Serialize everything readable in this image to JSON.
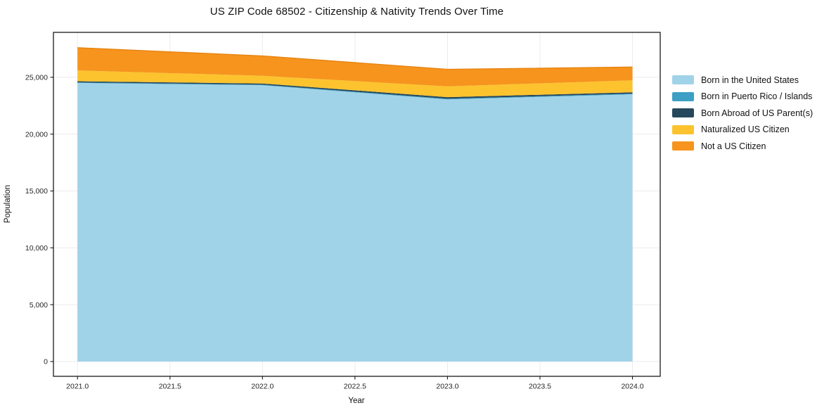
{
  "title": "US ZIP Code 68502 - Citizenship & Nativity Trends Over Time",
  "chart_data": {
    "type": "area",
    "stacked": true,
    "title": "US ZIP Code 68502 - Citizenship & Nativity Trends Over Time",
    "xlabel": "Year",
    "ylabel": "Population",
    "x": [
      2021,
      2022,
      2023,
      2024
    ],
    "series": [
      {
        "name": "Born in the United States",
        "color": "#a1d3e8",
        "values": [
          24500,
          24300,
          23050,
          23500
        ]
      },
      {
        "name": "Born in Puerto Rico / Islands",
        "color": "#3d9fc4",
        "values": [
          50,
          50,
          60,
          60
        ]
      },
      {
        "name": "Born Abroad of US Parent(s)",
        "color": "#26485c",
        "values": [
          100,
          100,
          140,
          120
        ]
      },
      {
        "name": "Naturalized US Citizen",
        "color": "#fcc32e",
        "values": [
          950,
          680,
          950,
          1050
        ]
      },
      {
        "name": "Not a US Citizen",
        "color": "#f6941e",
        "values": [
          2000,
          1750,
          1500,
          1170
        ]
      }
    ],
    "totals": [
      27600,
      26880,
      25700,
      25900
    ],
    "xlim": [
      2020.87,
      2024.15
    ],
    "ylim": [
      -1300,
      28950
    ],
    "xticks": [
      2021.0,
      2021.5,
      2022.0,
      2022.5,
      2023.0,
      2023.5,
      2024.0
    ],
    "xtick_labels": [
      "2021.0",
      "2021.5",
      "2022.0",
      "2022.5",
      "2023.0",
      "2023.5",
      "2024.0"
    ],
    "yticks": [
      0,
      5000,
      10000,
      15000,
      20000,
      25000
    ],
    "ytick_labels": [
      "0",
      "5,000",
      "10,000",
      "15,000",
      "20,000",
      "25,000"
    ],
    "grid": true,
    "gridline_color": "#ebebeb",
    "outline_color": "#e5820e",
    "axis_color": "#1a1a1a",
    "tick_label_color": "#262626",
    "legend_position": "right"
  }
}
